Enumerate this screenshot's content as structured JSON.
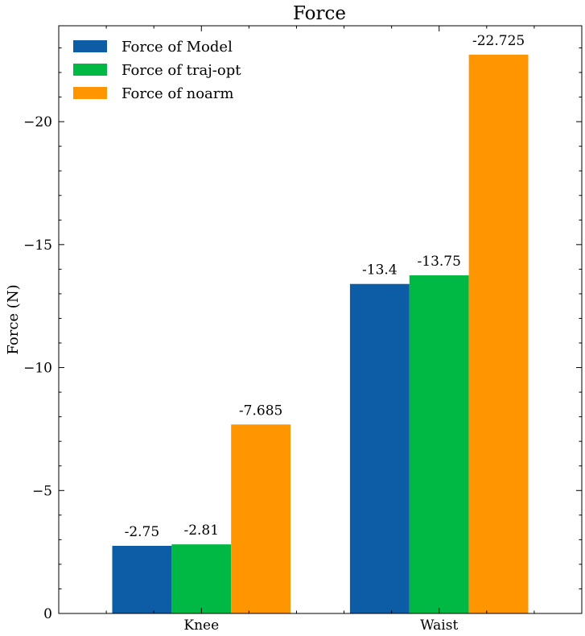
{
  "chart_data": {
    "type": "bar",
    "title": "Force",
    "xlabel": "",
    "ylabel": "Force (N)",
    "categories": [
      "Knee",
      "Waist"
    ],
    "series": [
      {
        "name": "Force of Model",
        "values": [
          -2.75,
          -13.4
        ],
        "labels": [
          "-2.75",
          "-13.4"
        ],
        "color": "#0C5DA5"
      },
      {
        "name": "Force of traj-opt",
        "values": [
          -2.81,
          -13.75
        ],
        "labels": [
          "-2.81",
          "-13.75"
        ],
        "color": "#00B945"
      },
      {
        "name": "Force of noarm",
        "values": [
          -7.685,
          -22.725
        ],
        "labels": [
          "-7.685",
          "-22.725"
        ],
        "color": "#FF9500"
      }
    ],
    "ylim": [
      0,
      -23.9
    ],
    "yticks": [
      0,
      -5,
      -10,
      -15,
      -20
    ],
    "ytick_labels": [
      "0",
      "−5",
      "−10",
      "−15",
      "−20"
    ],
    "legend_position": "top-left",
    "grid": false
  }
}
